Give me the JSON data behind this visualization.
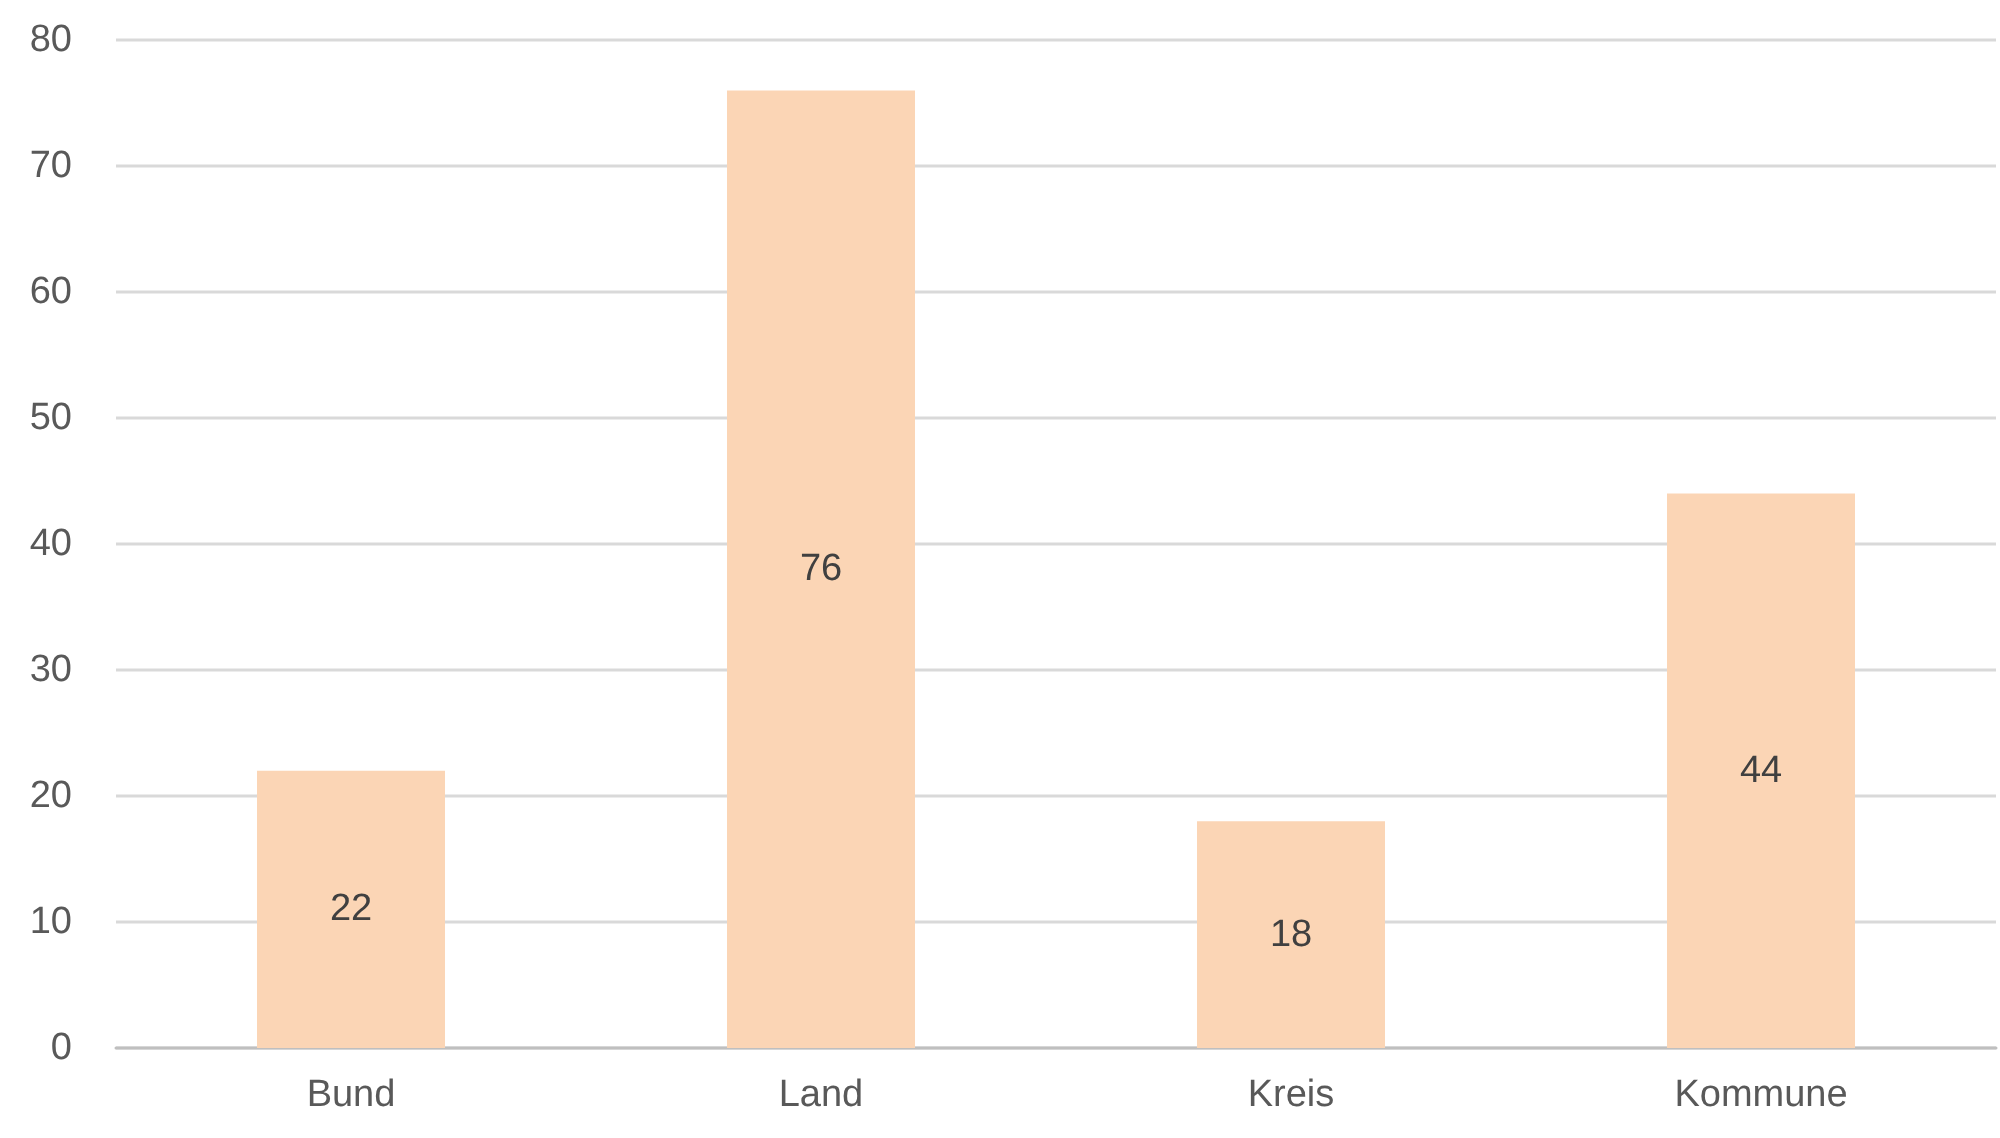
{
  "chart_data": {
    "type": "bar",
    "categories": [
      "Bund",
      "Land",
      "Kreis",
      "Kommune"
    ],
    "values": [
      22,
      76,
      18,
      44
    ],
    "color": "#fbd5b5",
    "ylim": [
      0,
      80
    ],
    "yticks": [
      0,
      10,
      20,
      30,
      40,
      50,
      60,
      70,
      80
    ],
    "grid": "y",
    "data_labels": true
  }
}
